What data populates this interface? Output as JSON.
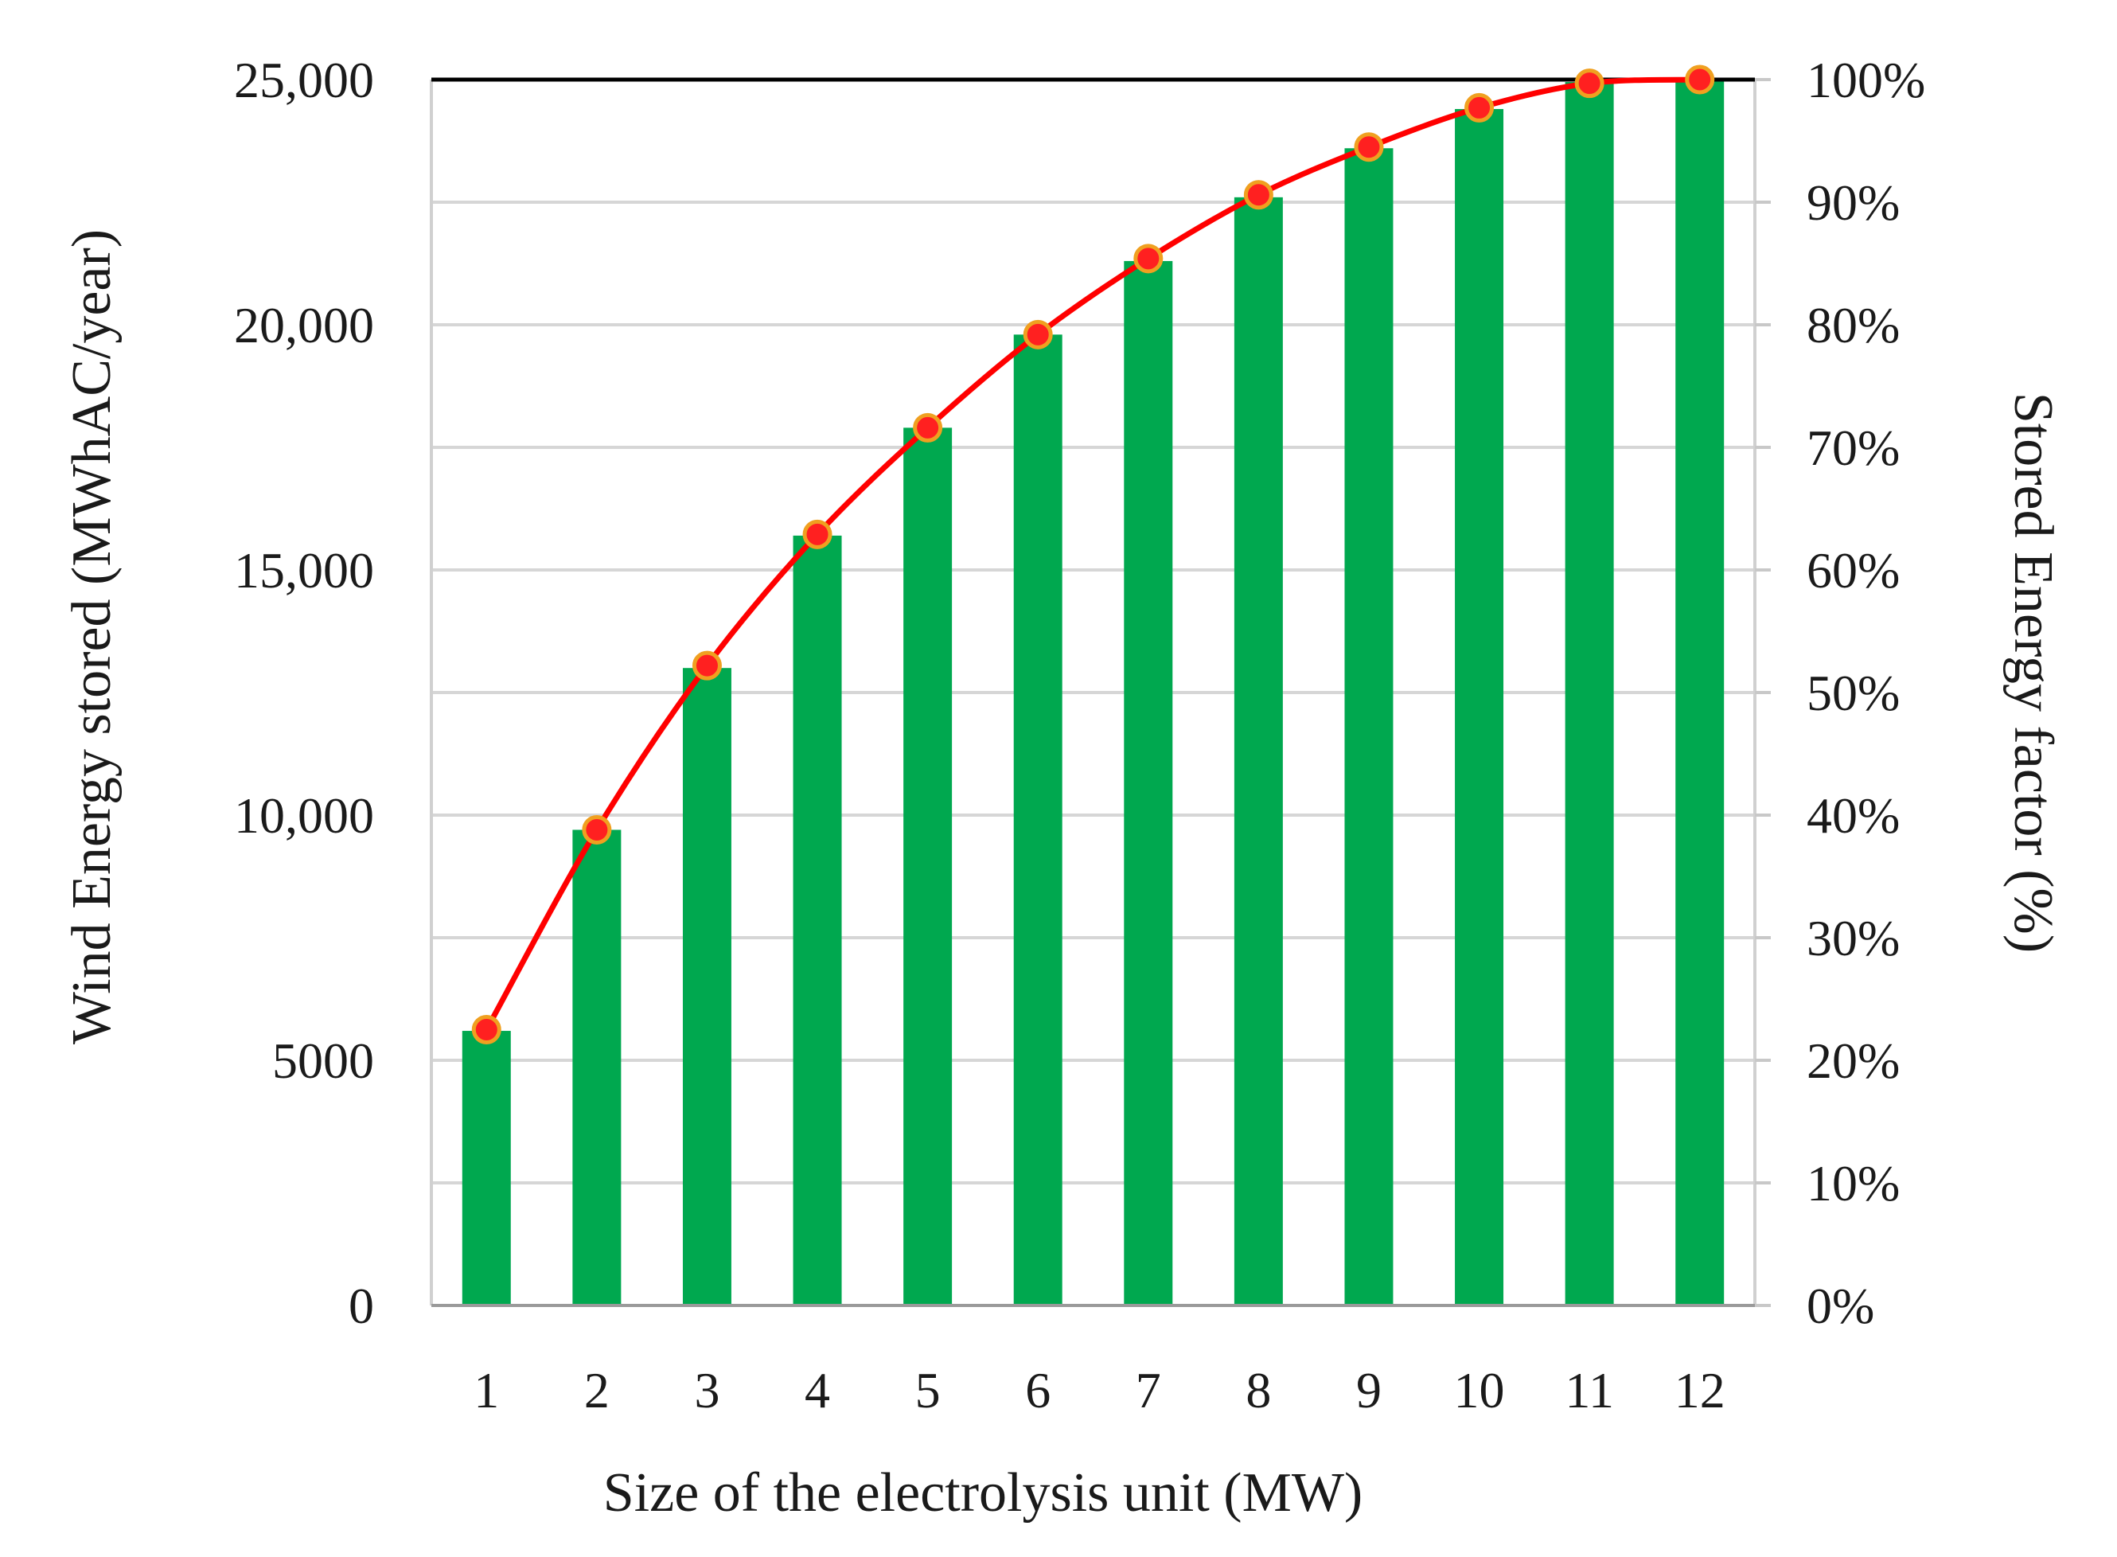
{
  "chart_data": {
    "type": "bar+line",
    "title": "",
    "categories": [
      "1",
      "2",
      "3",
      "4",
      "5",
      "6",
      "7",
      "8",
      "9",
      "10",
      "11",
      "12"
    ],
    "series": [
      {
        "name": "Wind Energy stored",
        "type": "bar",
        "axis": "left",
        "unit": "MWhAC/year",
        "color": "#00a84f",
        "values": [
          5600,
          9700,
          13000,
          15700,
          17900,
          19800,
          21300,
          22600,
          23600,
          24400,
          24950,
          25000
        ]
      },
      {
        "name": "Stored Energy factor",
        "type": "line",
        "axis": "right",
        "unit": "%",
        "color": "#ff0000",
        "marker_color": "#ff2020",
        "values": [
          22.5,
          38.8,
          52.2,
          62.9,
          71.6,
          79.2,
          85.4,
          90.6,
          94.5,
          97.7,
          99.7,
          100
        ]
      }
    ],
    "xlabel": "Size of the electrolysis unit (MW)",
    "ylabel_left": "Wind Energy stored (MWhAC/year)",
    "ylabel_right": "Stored Energy factor (%)",
    "ylim_left": [
      0,
      25000
    ],
    "ylim_right": [
      0,
      100
    ],
    "left_ticks": [
      {
        "value": 0,
        "label": "0"
      },
      {
        "value": 5000,
        "label": "5000"
      },
      {
        "value": 10000,
        "label": "10,000"
      },
      {
        "value": 15000,
        "label": "15,000"
      },
      {
        "value": 20000,
        "label": "20,000"
      },
      {
        "value": 25000,
        "label": "25,000"
      }
    ],
    "right_ticks": [
      {
        "value": 0,
        "label": "0%"
      },
      {
        "value": 10,
        "label": "10%"
      },
      {
        "value": 20,
        "label": "20%"
      },
      {
        "value": 30,
        "label": "30%"
      },
      {
        "value": 40,
        "label": "40%"
      },
      {
        "value": 50,
        "label": "50%"
      },
      {
        "value": 60,
        "label": "60%"
      },
      {
        "value": 70,
        "label": "70%"
      },
      {
        "value": 80,
        "label": "80%"
      },
      {
        "value": 90,
        "label": "90%"
      },
      {
        "value": 100,
        "label": "100%"
      }
    ],
    "grid": true,
    "legend": "none"
  }
}
